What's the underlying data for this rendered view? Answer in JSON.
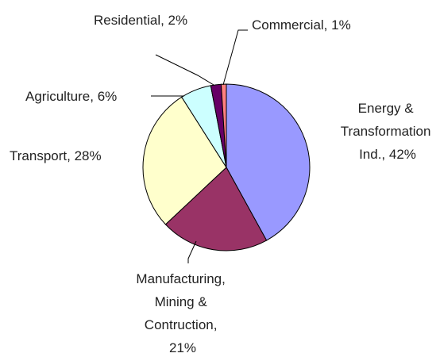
{
  "chart_data": {
    "type": "pie",
    "title": "",
    "slices": [
      {
        "label": "Energy & Transformation Ind.",
        "value": 42,
        "display": [
          "Energy &",
          "Transformation",
          "Ind., 42%"
        ],
        "color": "#9999ff"
      },
      {
        "label": "Manufacturing, Mining & Contruction",
        "value": 21,
        "display": [
          "Manufacturing,",
          "Mining &",
          "Contruction,",
          "21%"
        ],
        "color": "#993366"
      },
      {
        "label": "Transport",
        "value": 28,
        "display": [
          "Transport, 28%"
        ],
        "color": "#ffffcc"
      },
      {
        "label": "Agriculture",
        "value": 6,
        "display": [
          "Agriculture, 6%"
        ],
        "color": "#ccffff"
      },
      {
        "label": "Residential",
        "value": 2,
        "display": [
          "Residential, 2%"
        ],
        "color": "#660066"
      },
      {
        "label": "Commercial",
        "value": 1,
        "display": [
          "Commercial, 1%"
        ],
        "color": "#ff8080"
      }
    ],
    "legend": "none",
    "start_angle_deg": 0,
    "direction": "clockwise"
  }
}
